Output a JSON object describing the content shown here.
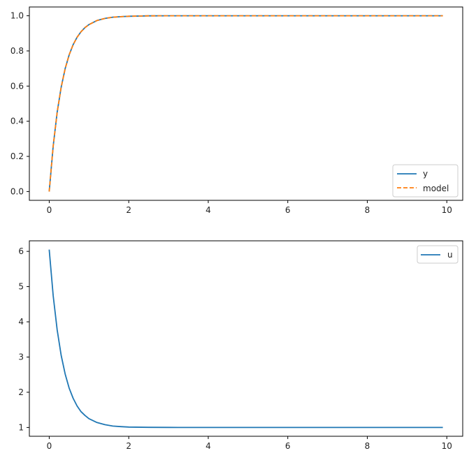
{
  "colors": {
    "blue": "#1f77b4",
    "orange": "#ff7f0e",
    "axis": "#000000",
    "legend_border": "#cccccc"
  },
  "chart_data": [
    {
      "type": "line",
      "title": "",
      "xlabel": "",
      "ylabel": "",
      "xlim": [
        -0.5,
        10.4
      ],
      "ylim": [
        -0.05,
        1.05
      ],
      "xticks": [
        0,
        2,
        4,
        6,
        8,
        10
      ],
      "xtick_labels": [
        "0",
        "2",
        "4",
        "6",
        "8",
        "10"
      ],
      "yticks": [
        0.0,
        0.2,
        0.4,
        0.6,
        0.8,
        1.0
      ],
      "ytick_labels": [
        "0.0",
        "0.2",
        "0.4",
        "0.6",
        "0.8",
        "1.0"
      ],
      "grid": false,
      "legend_position": "lower-right",
      "series": [
        {
          "name": "y",
          "color": "#1f77b4",
          "style": "solid",
          "x": [
            0,
            0.1,
            0.2,
            0.3,
            0.4,
            0.5,
            0.6,
            0.7,
            0.8,
            0.9,
            1.0,
            1.2,
            1.4,
            1.6,
            1.8,
            2.0,
            2.5,
            3.0,
            3.5,
            4.0,
            5.0,
            6.0,
            7.0,
            8.0,
            9.0,
            9.9
          ],
          "values": [
            0,
            0.259,
            0.451,
            0.593,
            0.699,
            0.777,
            0.835,
            0.878,
            0.909,
            0.933,
            0.95,
            0.973,
            0.985,
            0.992,
            0.995,
            0.997,
            0.9994,
            0.9999,
            1.0,
            1.0,
            1.0,
            1.0,
            1.0,
            1.0,
            1.0,
            1.0
          ]
        },
        {
          "name": "model",
          "color": "#ff7f0e",
          "style": "dashed",
          "x": [
            0,
            0.1,
            0.2,
            0.3,
            0.4,
            0.5,
            0.6,
            0.7,
            0.8,
            0.9,
            1.0,
            1.2,
            1.4,
            1.6,
            1.8,
            2.0,
            2.5,
            3.0,
            3.5,
            4.0,
            5.0,
            6.0,
            7.0,
            8.0,
            9.0,
            9.9
          ],
          "values": [
            0,
            0.259,
            0.451,
            0.593,
            0.699,
            0.777,
            0.835,
            0.878,
            0.909,
            0.933,
            0.95,
            0.973,
            0.985,
            0.992,
            0.995,
            0.997,
            0.9994,
            0.9999,
            1.0,
            1.0,
            1.0,
            1.0,
            1.0,
            1.0,
            1.0,
            1.0
          ]
        }
      ]
    },
    {
      "type": "line",
      "title": "",
      "xlabel": "",
      "ylabel": "",
      "xlim": [
        -0.5,
        10.4
      ],
      "ylim": [
        0.75,
        6.3
      ],
      "xticks": [
        0,
        2,
        4,
        6,
        8,
        10
      ],
      "xtick_labels": [
        "0",
        "2",
        "4",
        "6",
        "8",
        "10"
      ],
      "yticks": [
        1,
        2,
        3,
        4,
        5,
        6
      ],
      "ytick_labels": [
        "1",
        "2",
        "3",
        "4",
        "5",
        "6"
      ],
      "grid": false,
      "legend_position": "upper-right",
      "series": [
        {
          "name": "u",
          "color": "#1f77b4",
          "style": "solid",
          "x": [
            0,
            0.1,
            0.2,
            0.3,
            0.4,
            0.5,
            0.6,
            0.7,
            0.8,
            0.9,
            1.0,
            1.2,
            1.4,
            1.6,
            1.8,
            2.0,
            2.5,
            3.0,
            3.5,
            4.0,
            5.0,
            6.0,
            7.0,
            8.0,
            9.0,
            9.9
          ],
          "values": [
            6.05,
            4.74,
            3.77,
            3.05,
            2.52,
            2.12,
            1.83,
            1.61,
            1.45,
            1.34,
            1.25,
            1.14,
            1.08,
            1.04,
            1.023,
            1.012,
            1.003,
            1.001,
            1.0,
            1.0,
            1.0,
            1.0,
            1.0,
            1.0,
            1.0,
            1.0
          ]
        }
      ]
    }
  ]
}
